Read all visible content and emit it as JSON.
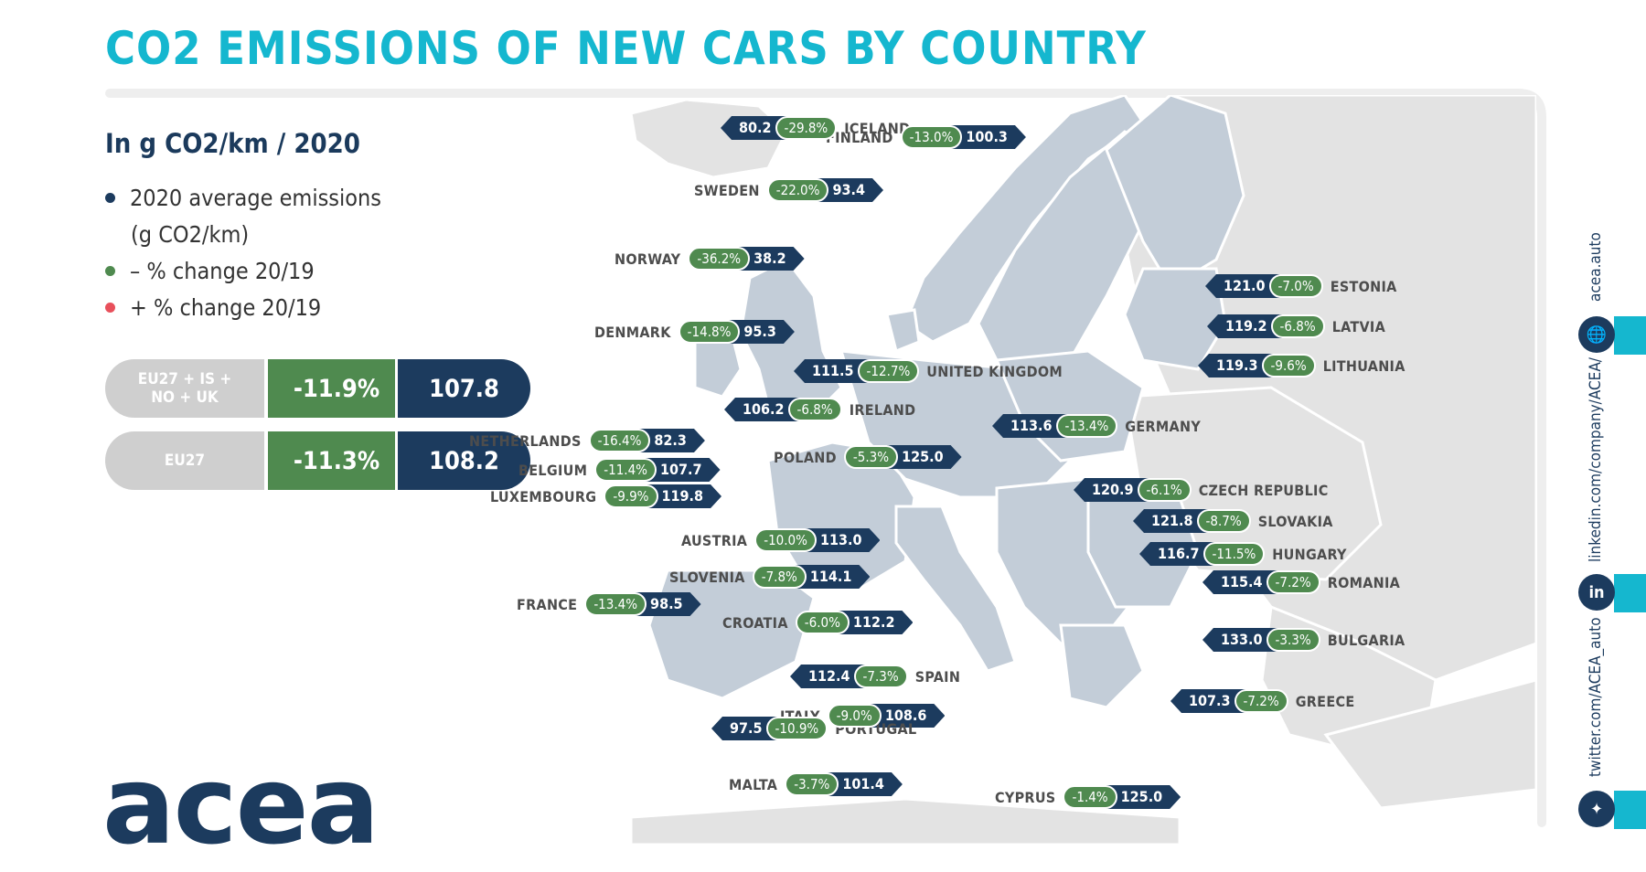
{
  "title": "CO2 EMISSIONS OF NEW CARS BY COUNTRY",
  "subtitle": "In g CO2/km / 2020",
  "legend": [
    {
      "text": "2020 average emissions",
      "text2": "(g CO2/km)",
      "color": "#1c3b5e"
    },
    {
      "text": "– % change 20/19",
      "color": "#4f8a4f"
    },
    {
      "text": "+ % change 20/19",
      "color": "#e8505b"
    }
  ],
  "aggregates": [
    {
      "label": "EU27 + IS +\nNO + UK",
      "change": "-11.9%",
      "value": "107.8"
    },
    {
      "label": "EU27",
      "change": "-11.3%",
      "value": "108.2"
    }
  ],
  "countries": [
    {
      "name": "ICELAND",
      "change": "-29.8%",
      "value": "80.2"
    },
    {
      "name": "FINLAND",
      "change": "-13.0%",
      "value": "100.3"
    },
    {
      "name": "SWEDEN",
      "change": "-22.0%",
      "value": "93.4"
    },
    {
      "name": "NORWAY",
      "change": "-36.2%",
      "value": "38.2"
    },
    {
      "name": "ESTONIA",
      "change": "-7.0%",
      "value": "121.0"
    },
    {
      "name": "LATVIA",
      "change": "-6.8%",
      "value": "119.2"
    },
    {
      "name": "DENMARK",
      "change": "-14.8%",
      "value": "95.3"
    },
    {
      "name": "LITHUANIA",
      "change": "-9.6%",
      "value": "119.3"
    },
    {
      "name": "UNITED KINGDOM",
      "change": "-12.7%",
      "value": "111.5"
    },
    {
      "name": "IRELAND",
      "change": "-6.8%",
      "value": "106.2"
    },
    {
      "name": "GERMANY",
      "change": "-13.4%",
      "value": "113.6"
    },
    {
      "name": "NETHERLANDS",
      "change": "-16.4%",
      "value": "82.3"
    },
    {
      "name": "POLAND",
      "change": "-5.3%",
      "value": "125.0"
    },
    {
      "name": "BELGIUM",
      "change": "-11.4%",
      "value": "107.7"
    },
    {
      "name": "LUXEMBOURG",
      "change": "-9.9%",
      "value": "119.8"
    },
    {
      "name": "CZECH REPUBLIC",
      "change": "-6.1%",
      "value": "120.9"
    },
    {
      "name": "SLOVAKIA",
      "change": "-8.7%",
      "value": "121.8"
    },
    {
      "name": "AUSTRIA",
      "change": "-10.0%",
      "value": "113.0"
    },
    {
      "name": "HUNGARY",
      "change": "-11.5%",
      "value": "116.7"
    },
    {
      "name": "SLOVENIA",
      "change": "-7.8%",
      "value": "114.1"
    },
    {
      "name": "ROMANIA",
      "change": "-7.2%",
      "value": "115.4"
    },
    {
      "name": "FRANCE",
      "change": "-13.4%",
      "value": "98.5"
    },
    {
      "name": "CROATIA",
      "change": "-6.0%",
      "value": "112.2"
    },
    {
      "name": "BULGARIA",
      "change": "-3.3%",
      "value": "133.0"
    },
    {
      "name": "SPAIN",
      "change": "-7.3%",
      "value": "112.4"
    },
    {
      "name": "GREECE",
      "change": "-7.2%",
      "value": "107.3"
    },
    {
      "name": "ITALY",
      "change": "-9.0%",
      "value": "108.6"
    },
    {
      "name": "PORTUGAL",
      "change": "-10.9%",
      "value": "97.5"
    },
    {
      "name": "MALTA",
      "change": "-3.7%",
      "value": "101.4"
    },
    {
      "name": "CYPRUS",
      "change": "-1.4%",
      "value": "125.0"
    }
  ],
  "logo": "acea",
  "social": {
    "website": "acea.auto",
    "linkedin": "linkedin.com/company/ACEA/",
    "twitter": "twitter.com/ACEA_auto",
    "icons": [
      "globe-icon",
      "linkedin-icon",
      "twitter-icon"
    ]
  }
}
